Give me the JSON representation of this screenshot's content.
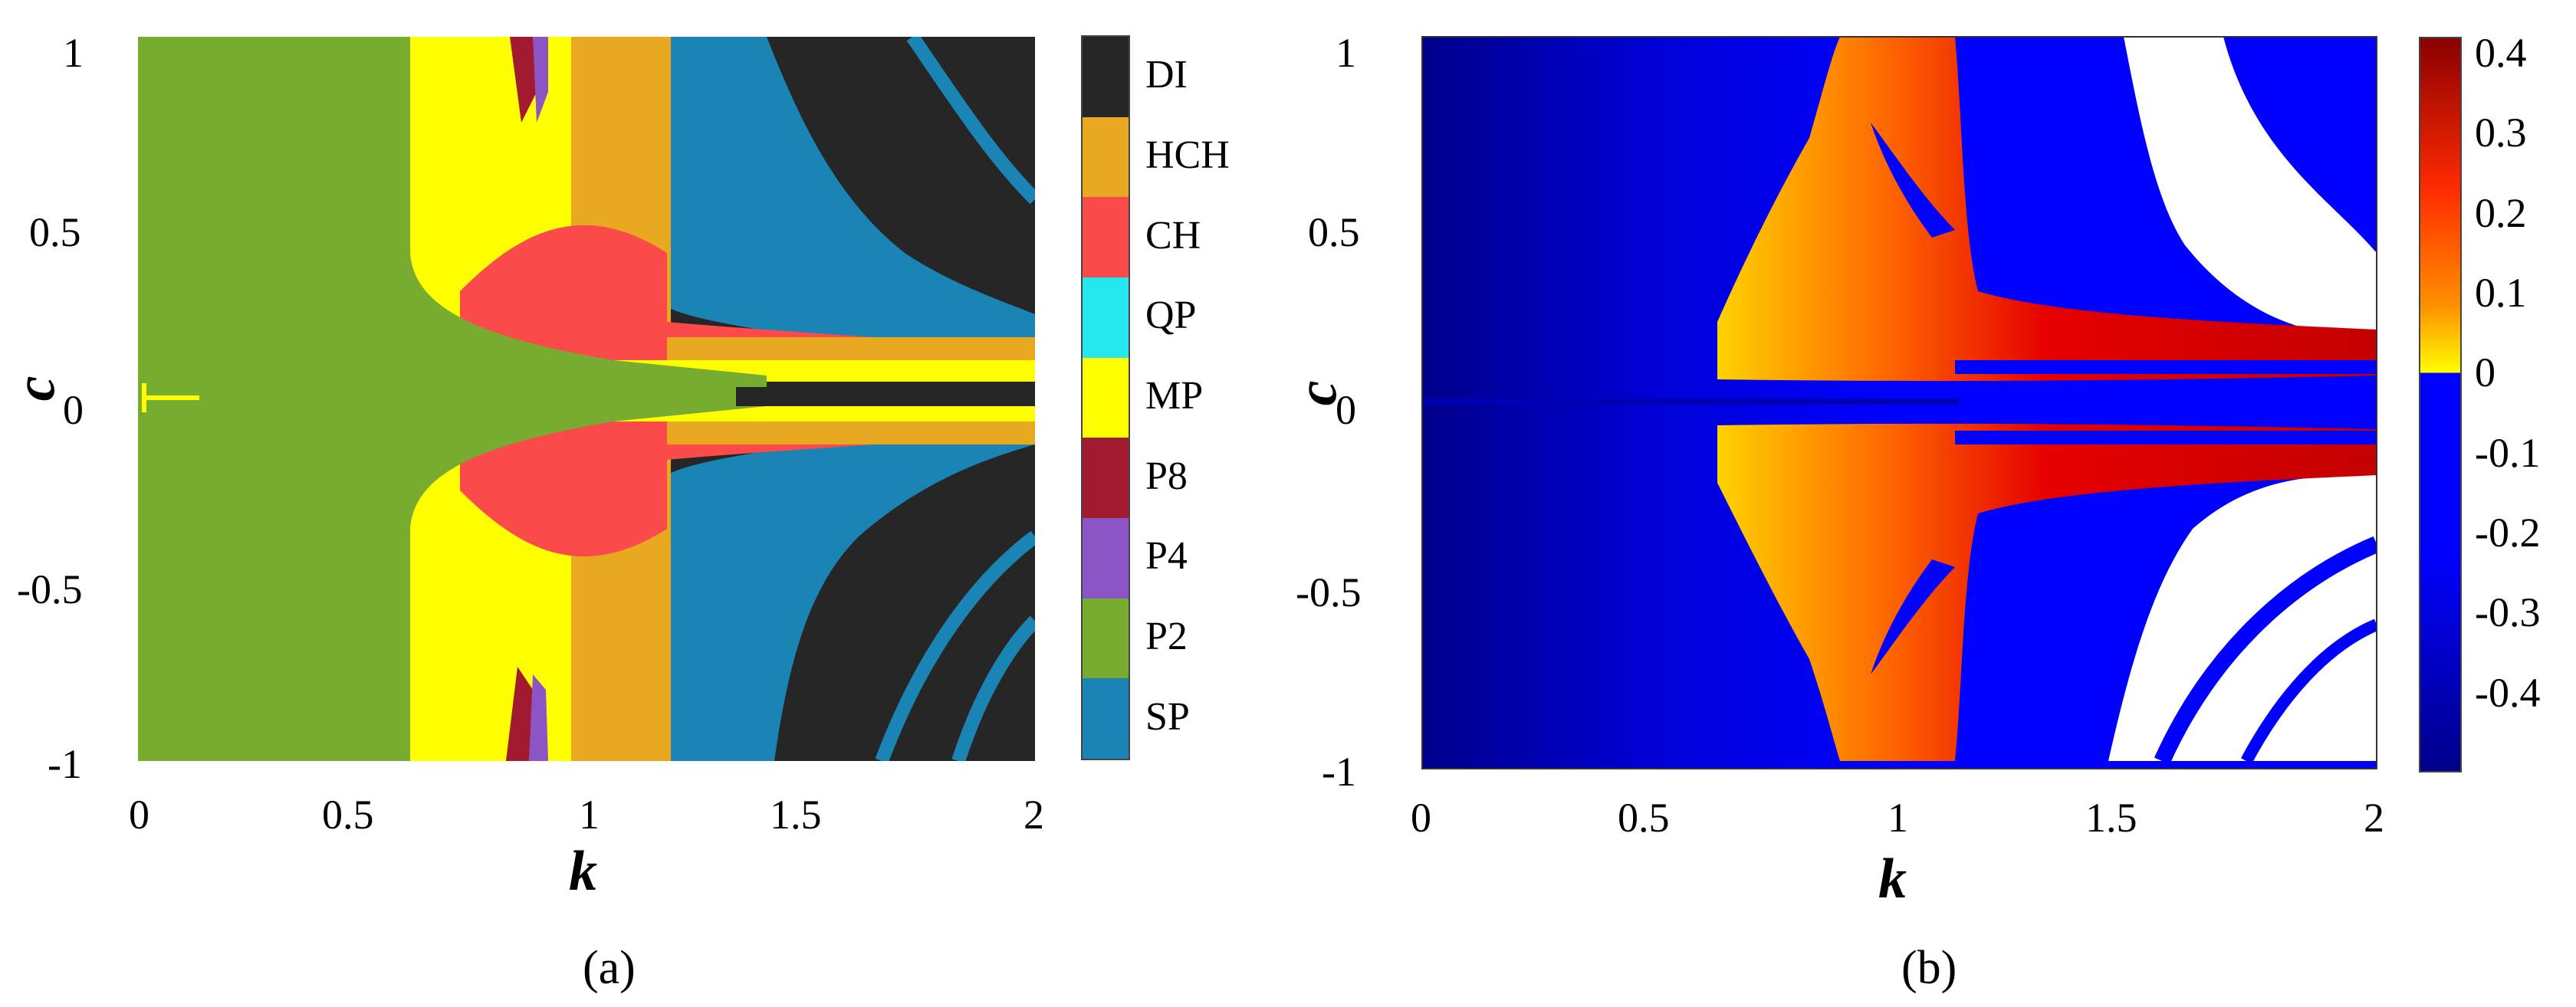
{
  "chart_data": [
    {
      "type": "heatmap",
      "caption": "(a)",
      "xlabel": "k",
      "ylabel": "c",
      "xlim": [
        0,
        2
      ],
      "ylim": [
        -1,
        1
      ],
      "xticks": [
        "0",
        "0.5",
        "1",
        "1.5",
        "2"
      ],
      "yticks": [
        "1",
        "0.5",
        "0",
        "-0.5",
        "-1"
      ],
      "legend_position": "right",
      "categories": [
        {
          "label": "DI",
          "color": "#262626"
        },
        {
          "label": "HCH",
          "color": "#e8a820"
        },
        {
          "label": "CH",
          "color": "#fa4a4a"
        },
        {
          "label": "QP",
          "color": "#24e8ee"
        },
        {
          "label": "MP",
          "color": "#ffff00"
        },
        {
          "label": "P8",
          "color": "#a11a2e"
        },
        {
          "label": "P4",
          "color": "#8b55c6"
        },
        {
          "label": "P2",
          "color": "#77ac30"
        },
        {
          "label": "SP",
          "color": "#1a85b4"
        }
      ],
      "regions": [
        {
          "category": "P2",
          "k_range": [
            0.0,
            0.6
          ]
        },
        {
          "category": "MP",
          "k_range": [
            0.6,
            0.85
          ]
        },
        {
          "category": "CH",
          "k_range": [
            0.78,
            1.2
          ],
          "c_range": [
            0.05,
            0.4
          ]
        },
        {
          "category": "HCH",
          "k_range": [
            0.95,
            1.2
          ]
        },
        {
          "category": "SP",
          "k_range": [
            1.2,
            2.0
          ]
        },
        {
          "category": "DI",
          "k_range": [
            1.4,
            2.0
          ]
        }
      ]
    },
    {
      "type": "heatmap",
      "caption": "(b)",
      "xlabel": "k",
      "ylabel": "c",
      "xlim": [
        0,
        2
      ],
      "ylim": [
        -1,
        1
      ],
      "xticks": [
        "0",
        "0.5",
        "1",
        "1.5",
        "2"
      ],
      "yticks": [
        "1",
        "0.5",
        "0",
        "-0.5",
        "-1"
      ],
      "colorbar": {
        "ticks": [
          "0.4",
          "0.3",
          "0.2",
          "0.1",
          "0",
          "-0.1",
          "-0.2",
          "-0.3",
          "-0.4"
        ],
        "tick_values": [
          0.4,
          0.3,
          0.2,
          0.1,
          0,
          -0.1,
          -0.2,
          -0.3,
          -0.4
        ],
        "range": [
          -0.5,
          0.42
        ],
        "negative_color": "#0000ff",
        "dark_low_color": "#00008b",
        "positive_low_color": "#ffff00",
        "positive_high_color": "#8b0000"
      }
    }
  ]
}
